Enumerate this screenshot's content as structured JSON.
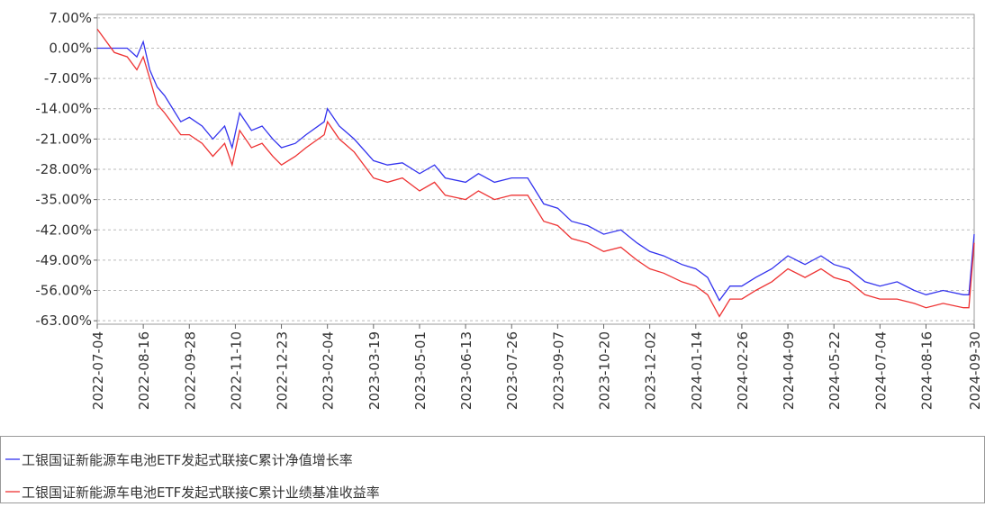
{
  "chart_data": {
    "type": "line",
    "x": [
      "2022-07-04",
      "2022-07-20",
      "2022-08-01",
      "2022-08-10",
      "2022-08-16",
      "2022-08-22",
      "2022-08-29",
      "2022-09-05",
      "2022-09-20",
      "2022-09-28",
      "2022-10-10",
      "2022-10-20",
      "2022-10-31",
      "2022-11-07",
      "2022-11-14",
      "2022-11-25",
      "2022-12-05",
      "2022-12-15",
      "2022-12-23",
      "2023-01-05",
      "2023-01-15",
      "2023-02-01",
      "2023-02-04",
      "2023-02-15",
      "2023-03-01",
      "2023-03-19",
      "2023-04-01",
      "2023-04-15",
      "2023-05-01",
      "2023-05-15",
      "2023-05-25",
      "2023-06-13",
      "2023-06-25",
      "2023-07-10",
      "2023-07-26",
      "2023-08-10",
      "2023-08-25",
      "2023-09-07",
      "2023-09-20",
      "2023-10-05",
      "2023-10-20",
      "2023-11-05",
      "2023-11-20",
      "2023-12-02",
      "2023-12-15",
      "2024-01-01",
      "2024-01-14",
      "2024-01-25",
      "2024-02-05",
      "2024-02-15",
      "2024-02-26",
      "2024-03-10",
      "2024-03-25",
      "2024-04-09",
      "2024-04-25",
      "2024-05-10",
      "2024-05-22",
      "2024-06-05",
      "2024-06-20",
      "2024-07-04",
      "2024-07-20",
      "2024-08-05",
      "2024-08-16",
      "2024-09-01",
      "2024-09-20",
      "2024-09-25",
      "2024-09-30"
    ],
    "series": [
      {
        "name": "工银国证新能源车电池ETF发起式联接C累计净值增长率",
        "color": "#3333ee",
        "values": [
          0,
          0,
          0,
          -2,
          1.5,
          -5,
          -9,
          -11,
          -17,
          -16,
          -18,
          -21,
          -18,
          -23,
          -15,
          -19,
          -18,
          -21,
          -23,
          -22,
          -20,
          -17,
          -14,
          -18,
          -21,
          -26,
          -27,
          -26.5,
          -29,
          -27,
          -30,
          -31,
          -29,
          -31,
          -30,
          -30,
          -36,
          -37,
          -40,
          -41,
          -43,
          -42,
          -45,
          -47,
          -48,
          -50,
          -51,
          -53,
          -58.3,
          -55,
          -55,
          -53,
          -51,
          -48,
          -50,
          -48,
          -50,
          -51,
          -54,
          -55,
          -54,
          -56,
          -57,
          -56,
          -57,
          -57,
          -43
        ]
      },
      {
        "name": "工银国证新能源车电池ETF发起式联接C累计业绩基准收益率",
        "color": "#ee3333",
        "values": [
          4.4,
          -1,
          -2,
          -5,
          -2,
          -7,
          -13,
          -15,
          -20,
          -20,
          -22,
          -25,
          -22,
          -27,
          -19,
          -23,
          -22,
          -25,
          -27,
          -25,
          -23,
          -20,
          -17,
          -21,
          -24,
          -30,
          -31,
          -30,
          -33,
          -31,
          -34,
          -35,
          -33,
          -35,
          -34,
          -34,
          -40,
          -41,
          -44,
          -45,
          -47,
          -46,
          -49,
          -51,
          -52,
          -54,
          -55,
          -57,
          -62,
          -58,
          -58,
          -56,
          -54,
          -51,
          -53,
          -51,
          -53,
          -54,
          -57,
          -58,
          -58,
          -59,
          -60,
          -59,
          -60,
          -60,
          -45
        ]
      }
    ],
    "ylim": [
      -63.8,
      7.8
    ],
    "yticks": [
      {
        "value": 7,
        "label": "7.00%"
      },
      {
        "value": 0,
        "label": "0.00%"
      },
      {
        "value": -7,
        "label": "-7.00%"
      },
      {
        "value": -14,
        "label": "-14.00%"
      },
      {
        "value": -21,
        "label": "-21.00%"
      },
      {
        "value": -28,
        "label": "-28.00%"
      },
      {
        "value": -35,
        "label": "-35.00%"
      },
      {
        "value": -42,
        "label": "-42.00%"
      },
      {
        "value": -49,
        "label": "-49.00%"
      },
      {
        "value": -56,
        "label": "-56.00%"
      },
      {
        "value": -63,
        "label": "-63.00%"
      }
    ],
    "xlim": [
      "2022-07-04",
      "2024-09-30"
    ],
    "xticks": [
      "2022-07-04",
      "2022-08-16",
      "2022-09-28",
      "2022-11-10",
      "2022-12-23",
      "2023-02-04",
      "2023-03-19",
      "2023-05-01",
      "2023-06-13",
      "2023-07-26",
      "2023-09-07",
      "2023-10-20",
      "2023-12-02",
      "2024-01-14",
      "2024-02-26",
      "2024-04-09",
      "2024-05-22",
      "2024-07-04",
      "2024-08-16",
      "2024-09-30"
    ],
    "grid": true
  }
}
